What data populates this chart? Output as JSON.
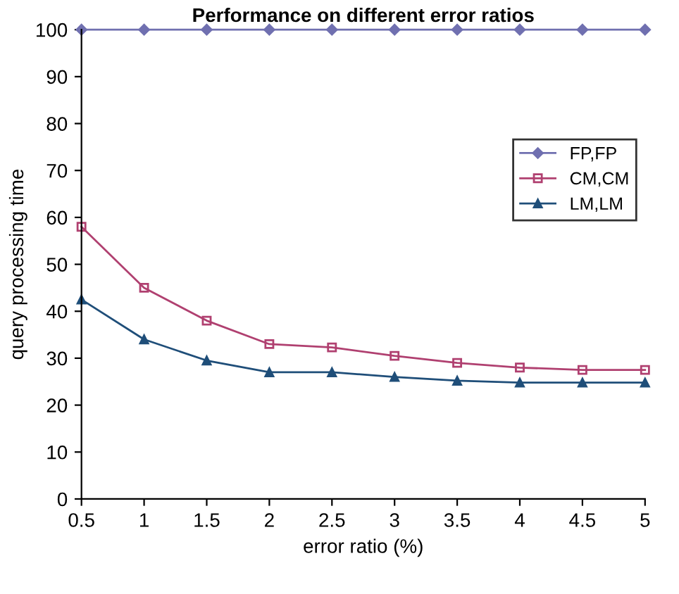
{
  "chart_data": {
    "type": "line",
    "title": "Performance on different error ratios",
    "xlabel": "error ratio (%)",
    "ylabel": "query processing time",
    "x": [
      0.5,
      1,
      1.5,
      2,
      2.5,
      3,
      3.5,
      4,
      4.5,
      5
    ],
    "series": [
      {
        "name": "FP,FP",
        "color": "#7070b0",
        "marker": "diamond",
        "values": [
          100,
          100,
          100,
          100,
          100,
          100,
          100,
          100,
          100,
          100
        ]
      },
      {
        "name": "CM,CM",
        "color": "#b04070",
        "marker": "square",
        "values": [
          58,
          45,
          38,
          33,
          32.3,
          30.5,
          29,
          28,
          27.5,
          27.5
        ]
      },
      {
        "name": "LM,LM",
        "color": "#1f4e79",
        "marker": "triangle",
        "values": [
          42.5,
          34,
          29.5,
          27,
          27,
          26,
          25.2,
          24.8,
          24.8,
          24.8
        ]
      }
    ],
    "xlim": [
      0.5,
      5
    ],
    "xticks": [
      0.5,
      1,
      1.5,
      2,
      2.5,
      3,
      3.5,
      4,
      4.5,
      5
    ],
    "ylim": [
      0,
      100
    ],
    "yticks": [
      0,
      10,
      20,
      30,
      40,
      50,
      60,
      70,
      80,
      90,
      100
    ],
    "grid": false,
    "legend": "right",
    "line_style": "solid"
  }
}
